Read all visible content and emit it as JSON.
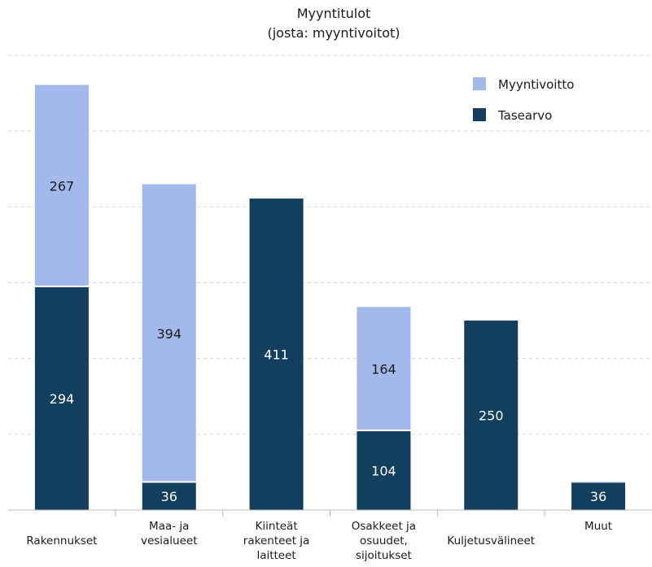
{
  "chart_data": {
    "type": "bar",
    "stacked": true,
    "title": "Myyntitulot",
    "subtitle": "(josta: myyntivoitot)",
    "xlabel": "",
    "ylabel": "",
    "categories": [
      [
        "Rakennukset"
      ],
      [
        "Maa- ja",
        "vesialueet"
      ],
      [
        "Kiinteät",
        "rakenteet ja",
        "laitteet"
      ],
      [
        "Osakkeet ja",
        "osuudet,",
        "sijoitukset"
      ],
      [
        "Kuljetusvälineet"
      ],
      [
        "Muut"
      ]
    ],
    "series": [
      {
        "name": "Tasearvo",
        "color": "#123f5e",
        "label_color": "#ffffff",
        "values": [
          294,
          36,
          411,
          104,
          250,
          36
        ]
      },
      {
        "name": "Myyntivoitto",
        "color": "#a3b9ec",
        "label_color": "#1a1a1a",
        "values": [
          267,
          394,
          0,
          164,
          0,
          1
        ]
      }
    ],
    "legend_order": [
      "Myyntivoitto",
      "Tasearvo"
    ],
    "ylim": [
      0,
      600
    ],
    "y_axis_labels_shown": false,
    "grid": true,
    "grid_style": "dashed",
    "legend_position": "top-right"
  }
}
